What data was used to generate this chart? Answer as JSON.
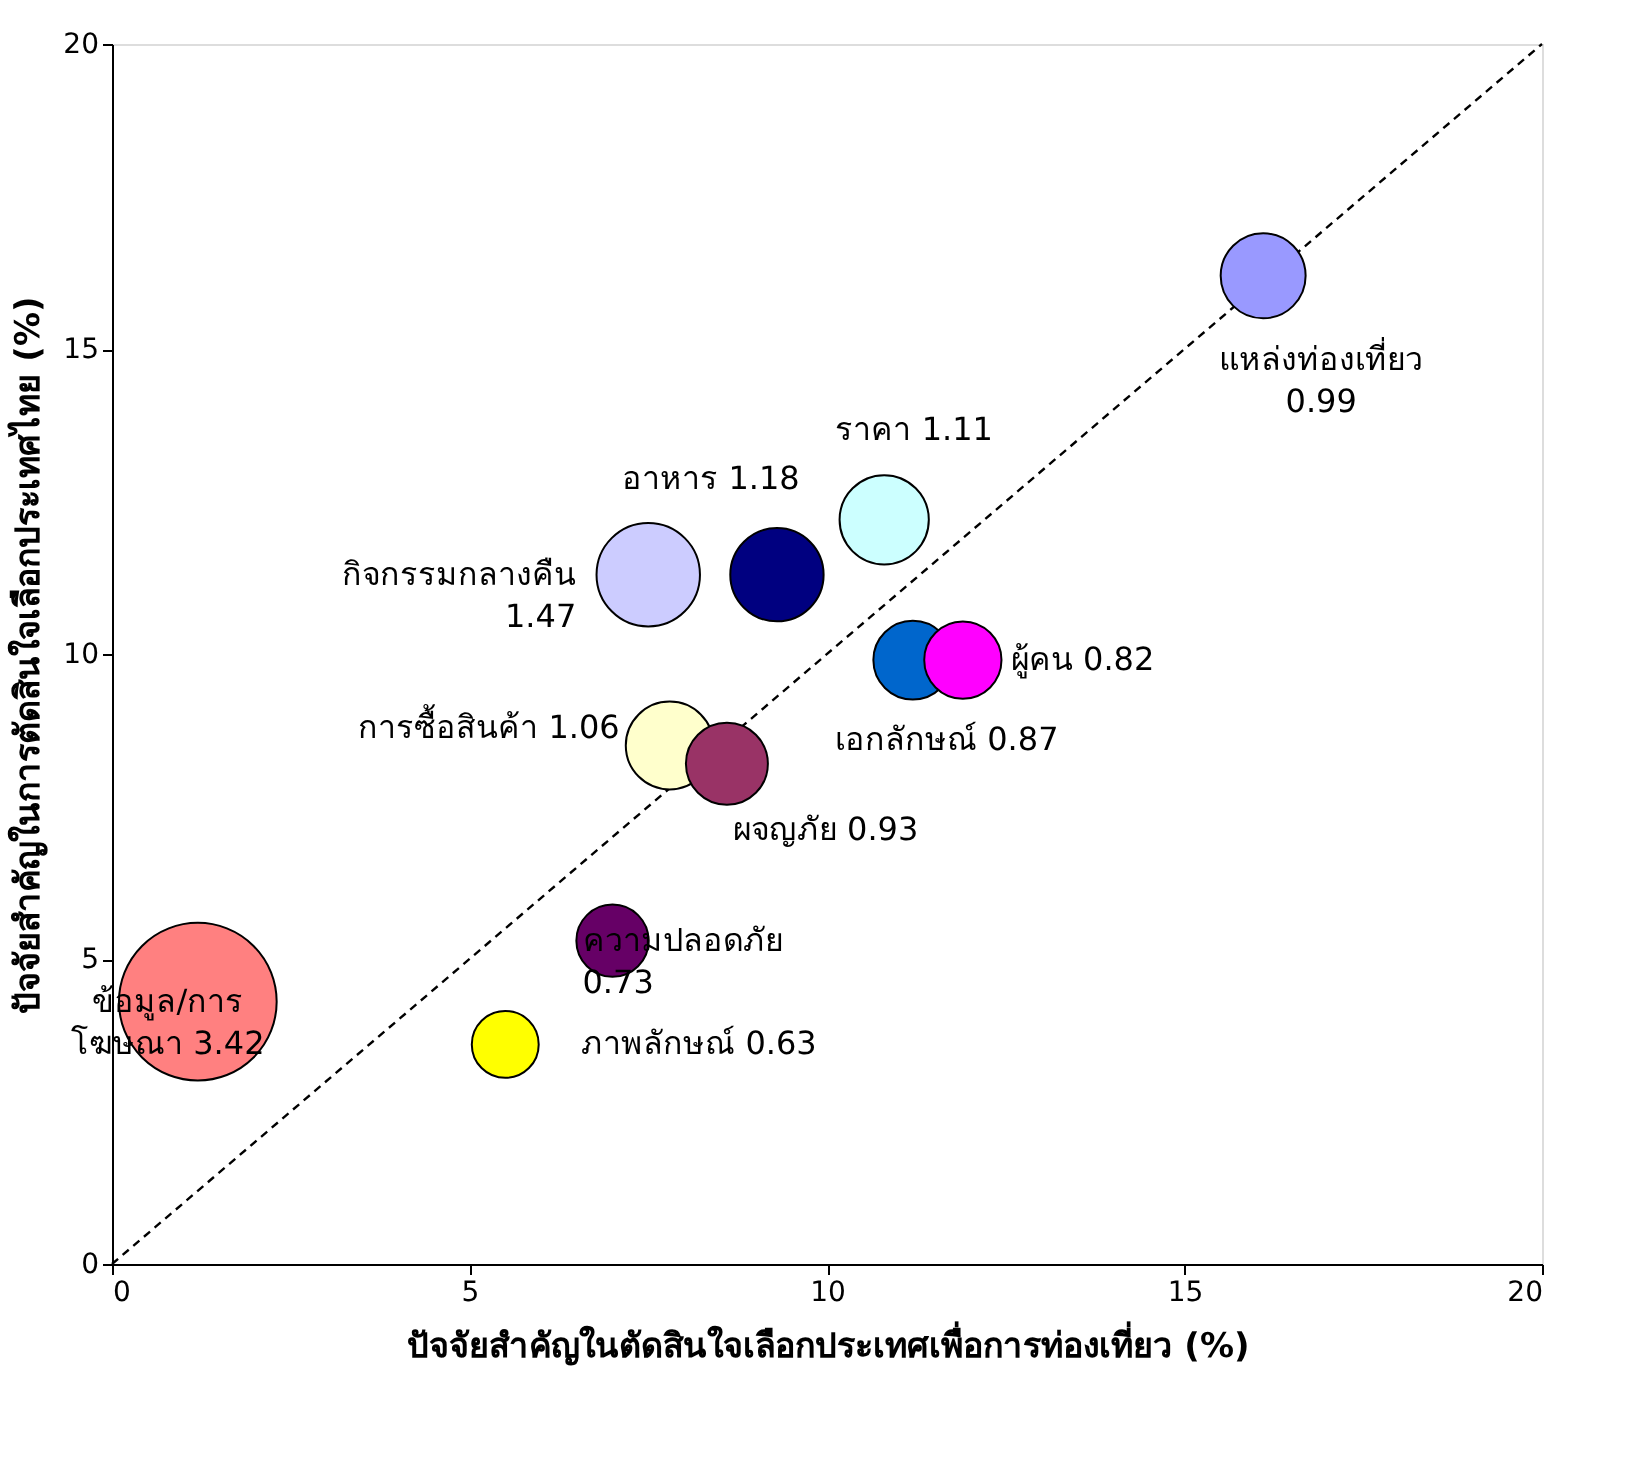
{
  "chart_data": {
    "type": "bubble",
    "xlabel": "ปัจจัยสำคัญในตัดสินใจเลือกประเทศเพื่อการท่องเที่ยว (%)",
    "ylabel": "ปัจจัยสำคัญในการตัดสินใจเลือกประเทศไทย (%)",
    "xlim": [
      0,
      20
    ],
    "ylim": [
      0,
      20
    ],
    "xticks": [
      0,
      5,
      10,
      15,
      20
    ],
    "yticks": [
      0,
      5,
      10,
      15,
      20
    ],
    "grid": false,
    "legend": false,
    "series": [
      {
        "type": "line",
        "x": [
          0,
          20
        ],
        "values": [
          0,
          20
        ],
        "color": "#000000",
        "line_style": "dashed"
      },
      {
        "x": [
          16.1,
          10.8,
          9.3,
          7.5,
          11.2,
          11.9,
          7.8,
          8.6,
          7.0,
          5.5,
          1.2
        ],
        "values": [
          16.2,
          12.2,
          11.3,
          11.3,
          9.9,
          9.9,
          8.5,
          8.2,
          5.3,
          3.6,
          4.3
        ],
        "sizes": [
          0.29,
          0.32,
          0.35,
          0.43,
          0.25,
          0.24,
          0.31,
          0.27,
          0.21,
          0.18,
          1
        ],
        "colors": [
          "#9999ff",
          "#ccffff",
          "#000080",
          "#ccccff",
          "#0066cc",
          "#ff00ff",
          "#ffffcc",
          "#993366",
          "#660066",
          "#ffff00",
          "#ff8080"
        ]
      }
    ],
    "annotations": [
      {
        "text": "แหล่งท่องเที่ยว\n0.99",
        "x": 16.1,
        "y": 16.2
      },
      {
        "text": "ราคา 1.11",
        "x": 10.8,
        "y": 12.2
      },
      {
        "text": "อาหาร 1.18",
        "x": 9.3,
        "y": 11.3
      },
      {
        "text": "กิจกรรมกลางคืน\n1.47",
        "x": 7.5,
        "y": 11.3
      },
      {
        "text": "เอกลักษณ์ 0.87",
        "x": 11.2,
        "y": 9.9
      },
      {
        "text": "ผู้คน 0.82",
        "x": 11.9,
        "y": 9.9
      },
      {
        "text": "การซื้อสินค้า 1.06",
        "x": 7.8,
        "y": 8.5
      },
      {
        "text": "ผจญภัย 0.93",
        "x": 8.6,
        "y": 8.2
      },
      {
        "text": "ความปลอดภัย\n0.73",
        "x": 7.0,
        "y": 5.3
      },
      {
        "text": "ภาพลักษณ์ 0.63",
        "x": 5.5,
        "y": 3.6
      },
      {
        "text": "ข้อมูล/การ\nโฆษณา 3.42",
        "x": 1.2,
        "y": 4.3
      }
    ]
  }
}
